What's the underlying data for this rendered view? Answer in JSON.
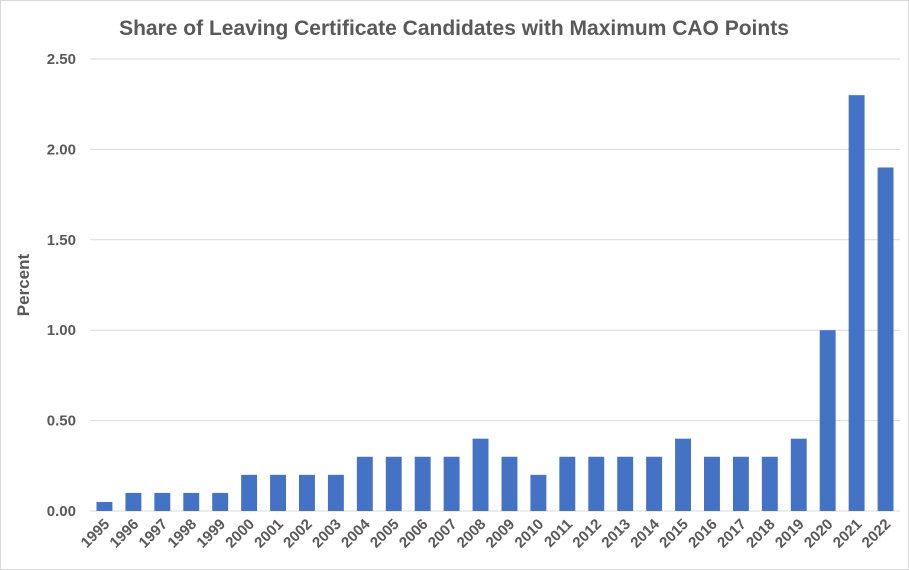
{
  "chart_data": {
    "type": "bar",
    "title": "Share of Leaving Certificate Candidates with Maximum CAO Points",
    "xlabel": "",
    "ylabel": "Percent",
    "ylim": [
      0,
      2.5
    ],
    "yticks": [
      "0.00",
      "0.50",
      "1.00",
      "1.50",
      "2.00",
      "2.50"
    ],
    "grid": true,
    "legend": "none",
    "bar_color": "#4472c4",
    "categories": [
      "1995",
      "1996",
      "1997",
      "1998",
      "1999",
      "2000",
      "2001",
      "2002",
      "2003",
      "2004",
      "2005",
      "2006",
      "2007",
      "2008",
      "2009",
      "2010",
      "2011",
      "2012",
      "2013",
      "2014",
      "2015",
      "2016",
      "2017",
      "2018",
      "2019",
      "2020",
      "2021",
      "2022"
    ],
    "values": [
      0.05,
      0.1,
      0.1,
      0.1,
      0.1,
      0.2,
      0.2,
      0.2,
      0.2,
      0.3,
      0.3,
      0.3,
      0.3,
      0.4,
      0.3,
      0.2,
      0.3,
      0.3,
      0.3,
      0.3,
      0.4,
      0.3,
      0.3,
      0.3,
      0.4,
      1.0,
      2.3,
      1.9
    ]
  }
}
